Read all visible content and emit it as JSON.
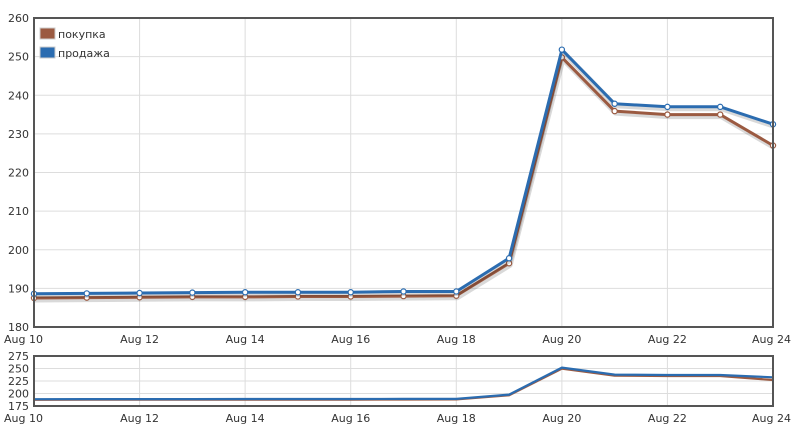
{
  "chart_data": [
    {
      "type": "line",
      "role": "main",
      "x": [
        "Aug 10",
        "Aug 11",
        "Aug 12",
        "Aug 13",
        "Aug 14",
        "Aug 15",
        "Aug 16",
        "Aug 17",
        "Aug 18",
        "Aug 19",
        "Aug 20",
        "Aug 21",
        "Aug 22",
        "Aug 23",
        "Aug 24"
      ],
      "x_tick_labels": [
        "Aug 10",
        "Aug 12",
        "Aug 14",
        "Aug 16",
        "Aug 18",
        "Aug 20",
        "Aug 22",
        "Aug 24"
      ],
      "y_tick_labels": [
        "180",
        "190",
        "200",
        "210",
        "220",
        "230",
        "240",
        "250",
        "260"
      ],
      "ylim": [
        180,
        260
      ],
      "grid": true,
      "legend_position": "top-left",
      "series": [
        {
          "name": "покупка",
          "color": "#9b5a41",
          "values": [
            187.5,
            187.6,
            187.7,
            187.8,
            187.8,
            187.9,
            187.9,
            188.0,
            188.1,
            196.5,
            249.8,
            235.9,
            235.0,
            235.0,
            227.0
          ]
        },
        {
          "name": "продажа",
          "color": "#2b6cb0",
          "values": [
            188.6,
            188.7,
            188.8,
            188.9,
            189.0,
            189.0,
            189.0,
            189.2,
            189.2,
            197.8,
            251.8,
            237.8,
            237.0,
            237.0,
            232.5
          ]
        }
      ],
      "title": "",
      "xlabel": "",
      "ylabel": ""
    },
    {
      "type": "line",
      "role": "overview",
      "x_tick_labels": [
        "Aug 10",
        "Aug 12",
        "Aug 14",
        "Aug 16",
        "Aug 18",
        "Aug 20",
        "Aug 22",
        "Aug 24"
      ],
      "y_tick_labels": [
        "175",
        "200",
        "225",
        "250",
        "275"
      ],
      "ylim": [
        175,
        275
      ],
      "grid": true
    }
  ],
  "legend": {
    "items": [
      {
        "label": "покупка",
        "color": "#9b5a41"
      },
      {
        "label": "продажа",
        "color": "#2b6cb0"
      }
    ]
  },
  "colors": {
    "frame": "#555555",
    "grid": "#dddddd",
    "marker_fill": "#ffffff"
  }
}
